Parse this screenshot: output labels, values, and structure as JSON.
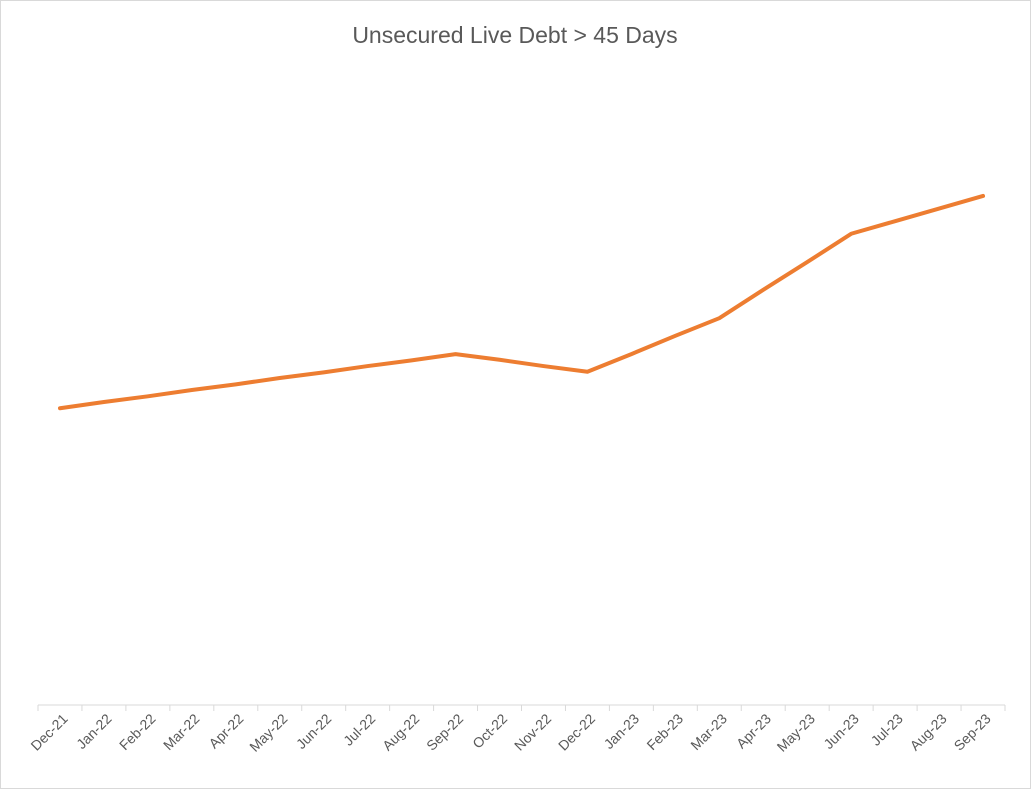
{
  "chart_data": {
    "type": "line",
    "title": "Unsecured Live Debt > 45 Days",
    "categories": [
      "Dec-21",
      "Jan-22",
      "Feb-22",
      "Mar-22",
      "Apr-22",
      "May-22",
      "Jun-22",
      "Jul-22",
      "Aug-22",
      "Sep-22",
      "Oct-22",
      "Nov-22",
      "Dec-22",
      "Jan-23",
      "Feb-23",
      "Mar-23",
      "Apr-23",
      "May-23",
      "Jun-23",
      "Jul-23",
      "Aug-23",
      "Sep-23"
    ],
    "series": [
      {
        "name": "Unsecured Live Debt > 45 Days",
        "color": "#ed7d31",
        "values": [
          47.1,
          48.1,
          49.0,
          50.0,
          50.9,
          51.9,
          52.8,
          53.8,
          54.7,
          55.7,
          54.8,
          53.8,
          52.9,
          55.7,
          58.6,
          61.4,
          65.9,
          70.3,
          74.8,
          76.8,
          78.8,
          80.8
        ]
      }
    ],
    "ylim": [
      0,
      100
    ]
  }
}
